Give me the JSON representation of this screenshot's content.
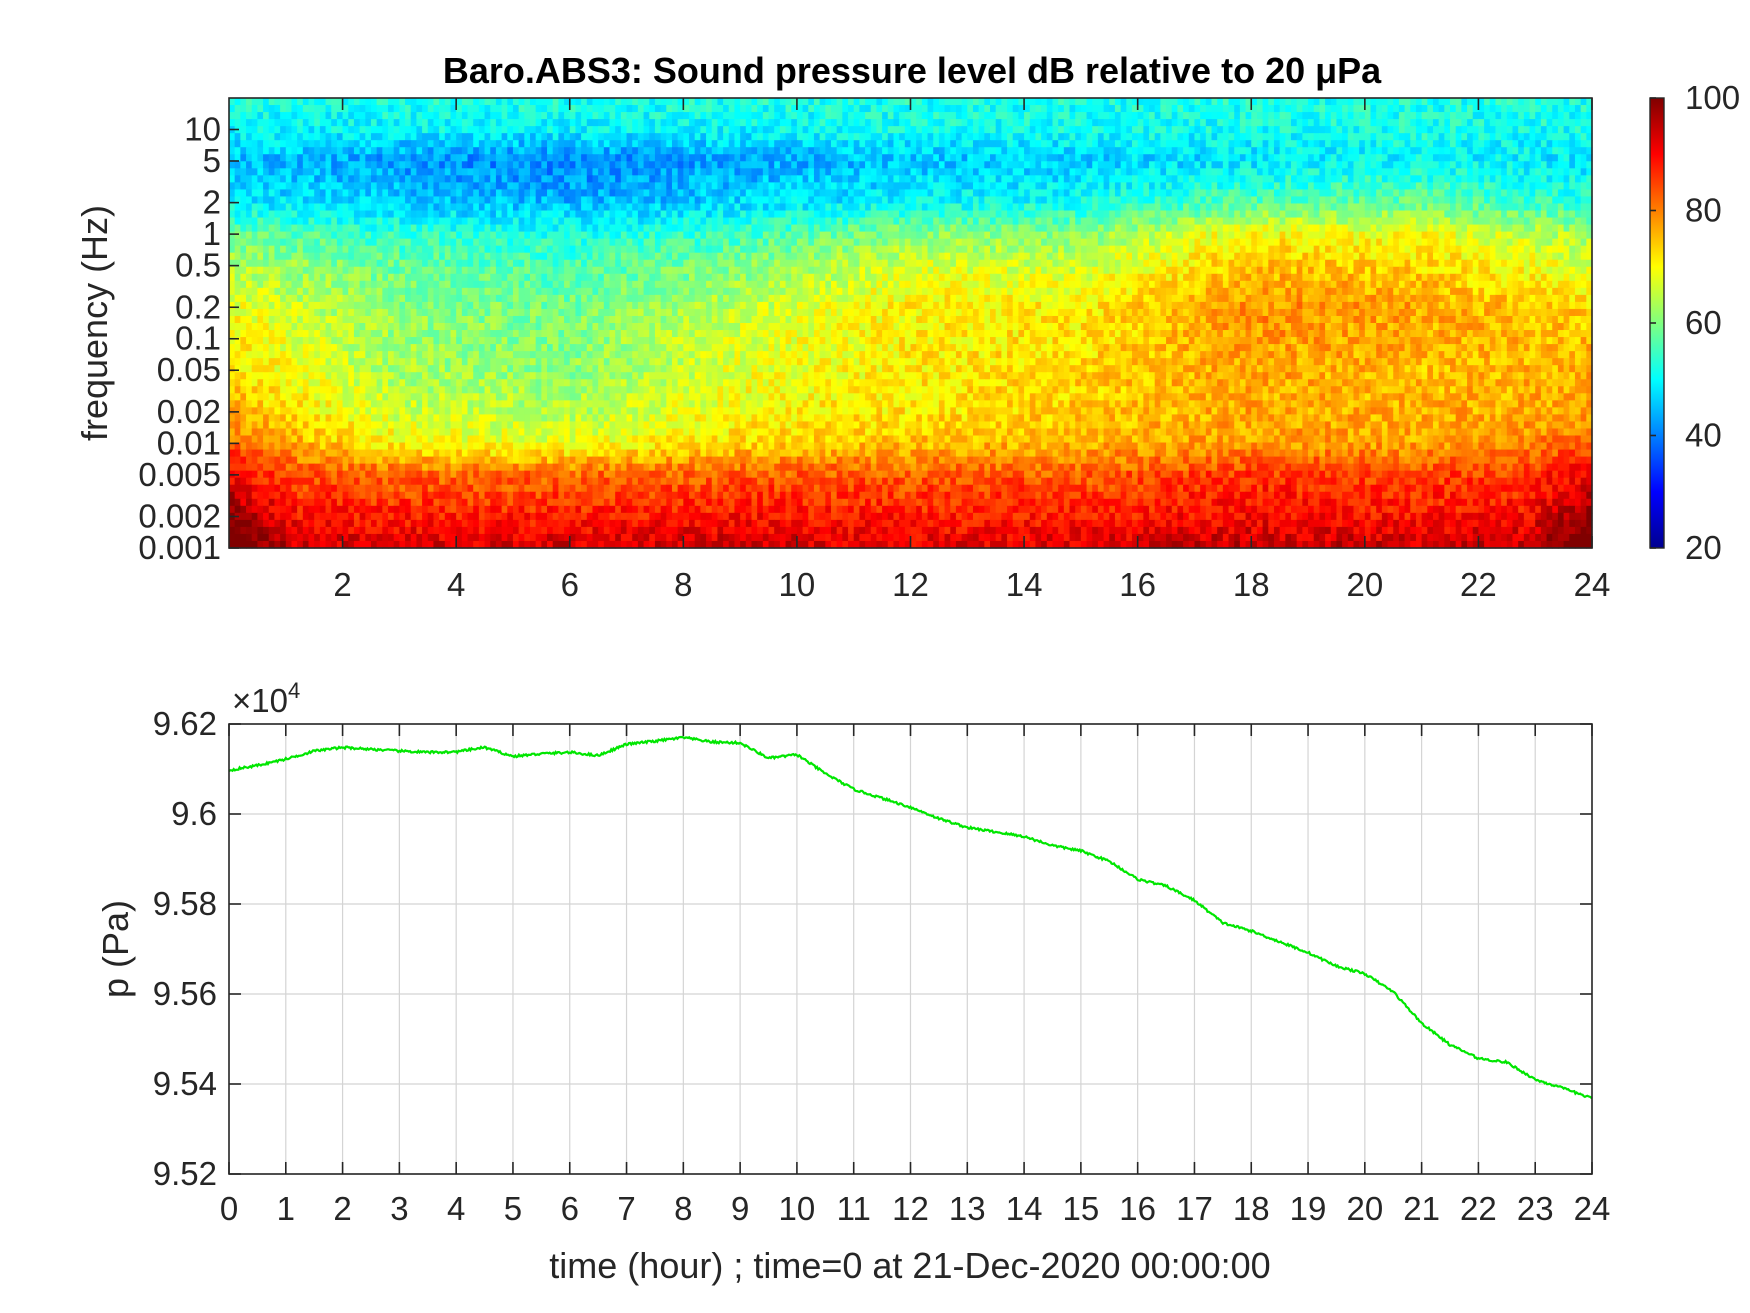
{
  "figure": {
    "title": "Baro.ABS3: Sound pressure level dB relative to 20 μPa"
  },
  "chart_data": [
    {
      "type": "heatmap",
      "title": "Baro.ABS3: Sound pressure level dB relative to 20 μPa",
      "xlabel": "",
      "ylabel": "frequency (Hz)",
      "xlim": [
        0,
        24
      ],
      "ylim": [
        0.001,
        20
      ],
      "y_scale": "log",
      "x_ticks": [
        2,
        4,
        6,
        8,
        10,
        12,
        14,
        16,
        18,
        20,
        22,
        24
      ],
      "x_tick_labels": [
        "2",
        "4",
        "6",
        "8",
        "10",
        "12",
        "14",
        "16",
        "18",
        "20",
        "22",
        "24"
      ],
      "y_ticks": [
        0.001,
        0.002,
        0.005,
        0.01,
        0.02,
        0.05,
        0.1,
        0.2,
        0.5,
        1,
        2,
        5,
        10
      ],
      "y_tick_labels": [
        "0.001",
        "0.002",
        "0.005",
        "0.01",
        "0.02",
        "0.05",
        "0.1",
        "0.2",
        "0.5",
        "1",
        "2",
        "5",
        "10"
      ],
      "colormap": "jet",
      "colorbar": {
        "range": [
          20,
          100
        ],
        "ticks": [
          20,
          40,
          60,
          80,
          100
        ],
        "tick_labels": [
          "20",
          "40",
          "60",
          "80",
          "100"
        ]
      },
      "approx_levels_db": {
        "frequency_hz": [
          0.001,
          0.002,
          0.005,
          0.01,
          0.02,
          0.05,
          0.1,
          0.2,
          0.5,
          1,
          2,
          5,
          10,
          20
        ],
        "time_hour": [
          0,
          3,
          6,
          9,
          12,
          15,
          18,
          21,
          24
        ],
        "values": [
          [
            95,
            93,
            93,
            94,
            92,
            93,
            95,
            94,
            95
          ],
          [
            90,
            88,
            88,
            89,
            88,
            88,
            90,
            89,
            90
          ],
          [
            85,
            82,
            82,
            83,
            83,
            83,
            86,
            85,
            86
          ],
          [
            80,
            70,
            68,
            73,
            75,
            76,
            78,
            77,
            80
          ],
          [
            76,
            66,
            64,
            70,
            72,
            74,
            77,
            76,
            77
          ],
          [
            73,
            63,
            61,
            68,
            71,
            73,
            77,
            75,
            76
          ],
          [
            71,
            62,
            60,
            67,
            71,
            72,
            78,
            76,
            75
          ],
          [
            69,
            61,
            59,
            65,
            71,
            71,
            79,
            77,
            73
          ],
          [
            64,
            58,
            56,
            60,
            67,
            66,
            75,
            73,
            67
          ],
          [
            58,
            54,
            52,
            55,
            61,
            61,
            70,
            69,
            63
          ],
          [
            49,
            46,
            44,
            47,
            50,
            51,
            57,
            58,
            53
          ],
          [
            45,
            42,
            40,
            43,
            45,
            46,
            48,
            50,
            48
          ],
          [
            50,
            50,
            50,
            50,
            51,
            51,
            51,
            52,
            51
          ],
          [
            52,
            52,
            52,
            52,
            52,
            52,
            52,
            52,
            52
          ]
        ]
      }
    },
    {
      "type": "line",
      "xlabel": "time (hour) ; time=0 at 21-Dec-2020 00:00:00",
      "ylabel": "p (Pa)",
      "y_exponent_label": "×10",
      "y_exponent": "4",
      "xlim": [
        0,
        24
      ],
      "ylim": [
        95200,
        96200
      ],
      "grid": true,
      "x_ticks": [
        0,
        1,
        2,
        3,
        4,
        5,
        6,
        7,
        8,
        9,
        10,
        11,
        12,
        13,
        14,
        15,
        16,
        17,
        18,
        19,
        20,
        21,
        22,
        23,
        24
      ],
      "y_ticks": [
        95200,
        95400,
        95600,
        95800,
        96000,
        96200
      ],
      "y_tick_labels": [
        "9.52",
        "9.54",
        "9.56",
        "9.58",
        "9.6",
        "9.62"
      ],
      "series": [
        {
          "color": "#00e600",
          "x": [
            0,
            0.5,
            1,
            1.5,
            2,
            2.5,
            3,
            3.5,
            4,
            4.5,
            5,
            5.5,
            6,
            6.5,
            7,
            7.5,
            8,
            8.5,
            9,
            9.5,
            10,
            10.5,
            11,
            11.5,
            12,
            12.5,
            13,
            13.5,
            14,
            14.5,
            15,
            15.5,
            16,
            16.5,
            17,
            17.5,
            18,
            18.5,
            19,
            19.5,
            20,
            20.5,
            21,
            21.5,
            22,
            22.5,
            23,
            23.5,
            24
          ],
          "values": [
            96097,
            96108,
            96122,
            96140,
            96148,
            96144,
            96140,
            96137,
            96138,
            96148,
            96128,
            96134,
            96137,
            96130,
            96155,
            96162,
            96170,
            96160,
            96158,
            96124,
            96132,
            96090,
            96055,
            96035,
            96015,
            95990,
            95970,
            95960,
            95950,
            95930,
            95918,
            95895,
            95855,
            95840,
            95808,
            95758,
            95740,
            95716,
            95692,
            95662,
            95645,
            95605,
            95535,
            95487,
            95457,
            95448,
            95410,
            95390,
            95368
          ]
        }
      ]
    }
  ]
}
